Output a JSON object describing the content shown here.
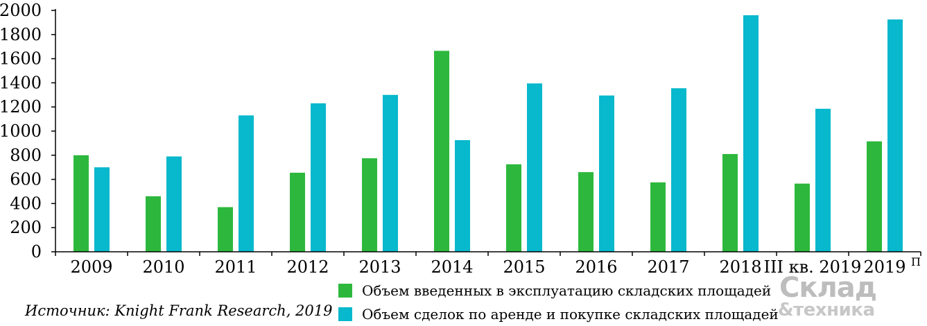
{
  "chart_data": {
    "type": "bar",
    "title": "",
    "xlabel": "",
    "ylabel": "",
    "ylim": [
      0,
      2000
    ],
    "yticks": [
      "0",
      "200",
      "400",
      "600",
      "800",
      "1000",
      "1200",
      "1400",
      "1600",
      "1800",
      "2000"
    ],
    "categories": [
      "2009",
      "2010",
      "2011",
      "2012",
      "2013",
      "2014",
      "2015",
      "2016",
      "2017",
      "2018",
      "III кв. 2019",
      "2019"
    ],
    "category_suffix": {
      "index": 11,
      "text": "П"
    },
    "series": [
      {
        "name": "Объем введенных в эксплуатацию складских площадей",
        "color": "#2db83d",
        "values": [
          800,
          460,
          370,
          655,
          775,
          1665,
          725,
          660,
          575,
          810,
          565,
          915
        ]
      },
      {
        "name": "Объем сделок по аренде и покупке складских площадей",
        "color": "#08b8cc",
        "values": [
          700,
          790,
          1130,
          1230,
          1300,
          925,
          1395,
          1295,
          1355,
          1960,
          1185,
          1925
        ]
      }
    ],
    "grid": false,
    "legend_position": "bottom"
  },
  "source": "Источник: Knight Frank Research, 2019",
  "logo": {
    "line1": "Склад",
    "line2": "&техника"
  }
}
